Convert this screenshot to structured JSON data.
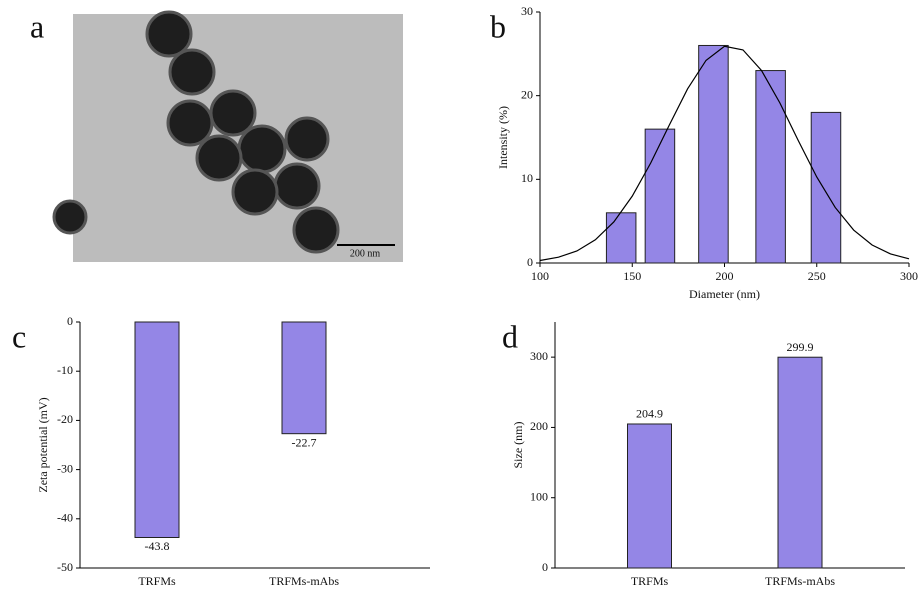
{
  "image": {
    "panel_label": "a",
    "scale_bar": "200 nm"
  },
  "chart_data": [
    {
      "type": "bar",
      "panel_label": "b",
      "xlabel": "Diameter (nm)",
      "ylabel": "Intensity (%)",
      "x": [
        144,
        165,
        194,
        225,
        255
      ],
      "values": [
        6,
        16,
        26,
        23,
        18
      ],
      "bar_width": 16,
      "color": "#9486e6",
      "fit_curve": {
        "x": [
          100,
          110,
          120,
          130,
          140,
          150,
          160,
          170,
          180,
          190,
          200,
          210,
          220,
          230,
          240,
          250,
          260,
          270,
          280,
          290,
          300
        ],
        "values": [
          0.3,
          0.69,
          1.44,
          2.77,
          4.91,
          7.99,
          11.95,
          16.45,
          20.82,
          24.22,
          25.9,
          25.47,
          23.03,
          19.14,
          14.63,
          10.28,
          6.64,
          3.94,
          2.15,
          1.08,
          0.5
        ]
      },
      "xlim": [
        100,
        300
      ],
      "xticks": [
        100,
        150,
        200,
        250,
        300
      ],
      "ylim": [
        0,
        30
      ],
      "yticks": [
        0,
        10,
        20,
        30
      ]
    },
    {
      "type": "bar",
      "panel_label": "c",
      "ylabel": "Zeta potential (mV)",
      "categories": [
        "TRFMs",
        "TRFMs-mAbs"
      ],
      "values": [
        -43.8,
        -22.7
      ],
      "color": "#9486e6",
      "ylim": [
        -50,
        0
      ],
      "yticks": [
        0,
        -10,
        -20,
        -30,
        -40,
        -50
      ]
    },
    {
      "type": "bar",
      "panel_label": "d",
      "ylabel": "Size (nm)",
      "categories": [
        "TRFMs",
        "TRFMs-mAbs"
      ],
      "values": [
        204.9,
        299.9
      ],
      "color": "#9486e6",
      "ylim": [
        0,
        350
      ],
      "yticks": [
        0,
        100,
        200,
        300
      ]
    }
  ]
}
